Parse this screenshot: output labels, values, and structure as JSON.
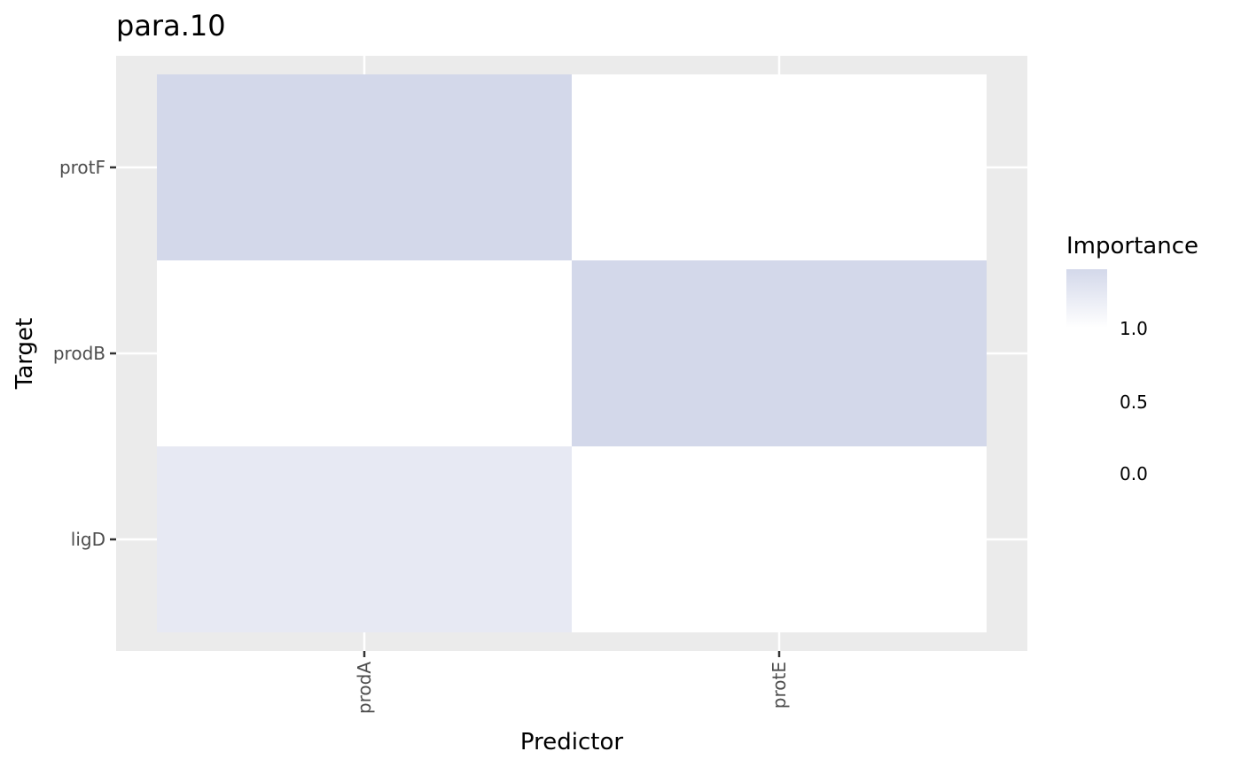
{
  "chart_data": {
    "type": "heatmap",
    "title": "para.10",
    "xlabel": "Predictor",
    "ylabel": "Target",
    "x_categories": [
      "prodA",
      "protE"
    ],
    "y_categories": [
      "ligD",
      "prodB",
      "protF"
    ],
    "cells": [
      {
        "x": "prodA",
        "y": "protF",
        "value": 1.45
      },
      {
        "x": "protE",
        "y": "protF",
        "value": 0.0
      },
      {
        "x": "prodA",
        "y": "prodB",
        "value": 0.0
      },
      {
        "x": "protE",
        "y": "prodB",
        "value": 1.45
      },
      {
        "x": "prodA",
        "y": "ligD",
        "value": 0.8
      },
      {
        "x": "protE",
        "y": "ligD",
        "value": 0.0
      }
    ],
    "legend": {
      "title": "Importance",
      "ticks": [
        1.0,
        0.5,
        0.0
      ],
      "tick_labels": [
        "1.0",
        "0.5",
        "0.0"
      ],
      "range": [
        0,
        1.45
      ],
      "low_color": "#ffffff",
      "high_color": "#d3d8ea",
      "placement": "right"
    },
    "panel_background": "#ebebeb",
    "grid": true
  }
}
